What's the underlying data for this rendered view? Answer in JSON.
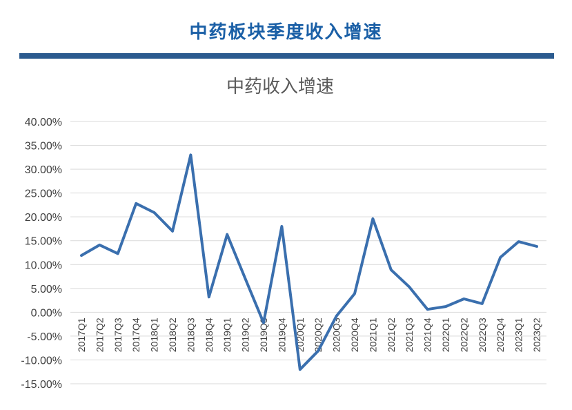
{
  "header": {
    "title": "中药板块季度收入增速"
  },
  "colors": {
    "header_text": "#1a5fa6",
    "header_bar": "#2b5b8f",
    "line": "#3a6fae",
    "grid": "#d9d9d9"
  },
  "chart_data": {
    "type": "line",
    "title": "中药收入增速",
    "xlabel": "",
    "ylabel": "",
    "ylim": [
      -0.15,
      0.4
    ],
    "yticks": [
      "40.00%",
      "35.00%",
      "30.00%",
      "25.00%",
      "20.00%",
      "15.00%",
      "10.00%",
      "5.00%",
      "0.00%",
      "-5.00%",
      "-10.00%",
      "-15.00%"
    ],
    "grid": true,
    "categories": [
      "2017Q1",
      "2017Q2",
      "2017Q3",
      "2017Q4",
      "2018Q1",
      "2018Q2",
      "2018Q3",
      "2018Q4",
      "2019Q1",
      "2019Q2",
      "2019Q3",
      "2019Q4",
      "2020Q1",
      "2020Q2",
      "2020Q3",
      "2020Q4",
      "2021Q1",
      "2021Q2",
      "2021Q3",
      "2021Q4",
      "2022Q1",
      "2022Q2",
      "2022Q3",
      "2022Q4",
      "2023Q1",
      "2023Q2"
    ],
    "series": [
      {
        "values": [
          0.119,
          0.141,
          0.123,
          0.228,
          0.209,
          0.17,
          0.33,
          0.032,
          0.163,
          0.07,
          -0.022,
          0.18,
          -0.12,
          -0.081,
          -0.008,
          0.039,
          0.196,
          0.089,
          0.053,
          0.006,
          0.012,
          0.028,
          0.018,
          0.115,
          0.148,
          0.138
        ]
      }
    ]
  }
}
